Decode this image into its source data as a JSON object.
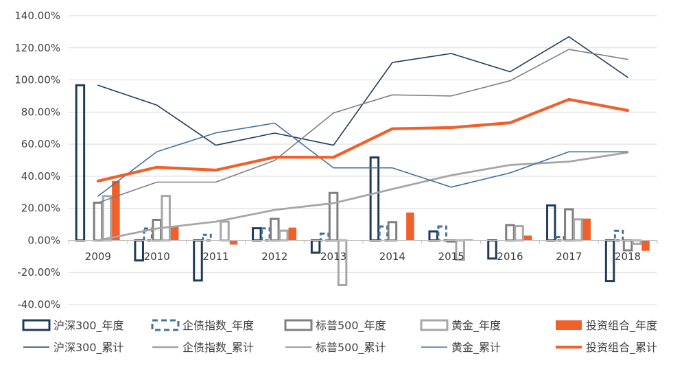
{
  "chart_data": {
    "type": "bar",
    "categories": [
      "2009",
      "2010",
      "2011",
      "2012",
      "2013",
      "2014",
      "2015",
      "2016",
      "2017",
      "2018"
    ],
    "ylim": [
      -40,
      140
    ],
    "y_ticks": [
      "-40.00%",
      "-20.00%",
      "0.00%",
      "20.00%",
      "40.00%",
      "60.00%",
      "80.00%",
      "100.00%",
      "120.00%",
      "140.00%"
    ],
    "y_tick_values": [
      -40,
      -20,
      0,
      20,
      40,
      60,
      80,
      100,
      120,
      140
    ],
    "grid": true,
    "legend_position": "bottom",
    "bar_series": [
      {
        "name": "沪深300_年度",
        "color": "#1f3b5a",
        "style": "outline",
        "values": [
          96.7,
          -12.5,
          -25.0,
          7.6,
          -7.6,
          51.7,
          5.6,
          -11.3,
          21.8,
          -25.3
        ]
      },
      {
        "name": "企债指数_年度",
        "color": "#41719c",
        "style": "dashed",
        "values": [
          0.0,
          7.4,
          3.5,
          7.5,
          4.2,
          8.7,
          8.7,
          0.0,
          2.1,
          6.0
        ]
      },
      {
        "name": "标普500_年度",
        "color": "#7f7f7f",
        "style": "outline",
        "values": [
          23.5,
          12.8,
          0.0,
          13.4,
          29.6,
          11.4,
          -0.7,
          9.5,
          19.4,
          -6.2
        ]
      },
      {
        "name": "黄金_年度",
        "color": "#a6a6a6",
        "style": "outline",
        "values": [
          27.6,
          27.7,
          11.7,
          6.1,
          -27.8,
          0.0,
          -12.0,
          8.9,
          13.1,
          -2.1
        ]
      },
      {
        "name": "投资组合_年度",
        "color": "#f0602a",
        "style": "solid",
        "values": [
          37.0,
          8.5,
          -2.6,
          8.0,
          0.0,
          17.4,
          0.6,
          3.0,
          13.6,
          -6.5
        ]
      }
    ],
    "line_series": [
      {
        "name": "沪深300_累计",
        "color": "#1f3b5a",
        "width": 1.6,
        "values": [
          96.7,
          84.3,
          59.3,
          66.9,
          59.3,
          110.9,
          116.5,
          105.1,
          126.9,
          101.6
        ]
      },
      {
        "name": "企债指数_累计",
        "color": "#a6a6a6",
        "width": 2.8,
        "values": [
          0.0,
          7.4,
          11.7,
          19.0,
          23.2,
          32.0,
          40.6,
          47.0,
          49.1,
          54.8
        ]
      },
      {
        "name": "标普500_累计",
        "color": "#7f7f7f",
        "width": 1.6,
        "values": [
          23.5,
          36.3,
          36.3,
          49.8,
          79.4,
          90.7,
          90.0,
          99.5,
          119.0,
          112.8
        ]
      },
      {
        "name": "黄金_累计",
        "color": "#41719c",
        "width": 1.6,
        "values": [
          27.6,
          55.3,
          67.0,
          73.1,
          45.2,
          45.2,
          33.2,
          42.1,
          55.2,
          55.2
        ]
      },
      {
        "name": "投资组合_累计",
        "color": "#f0602a",
        "width": 4.2,
        "values": [
          37.0,
          45.6,
          43.8,
          51.9,
          51.8,
          69.6,
          70.3,
          73.3,
          87.9,
          81.0
        ]
      }
    ]
  }
}
